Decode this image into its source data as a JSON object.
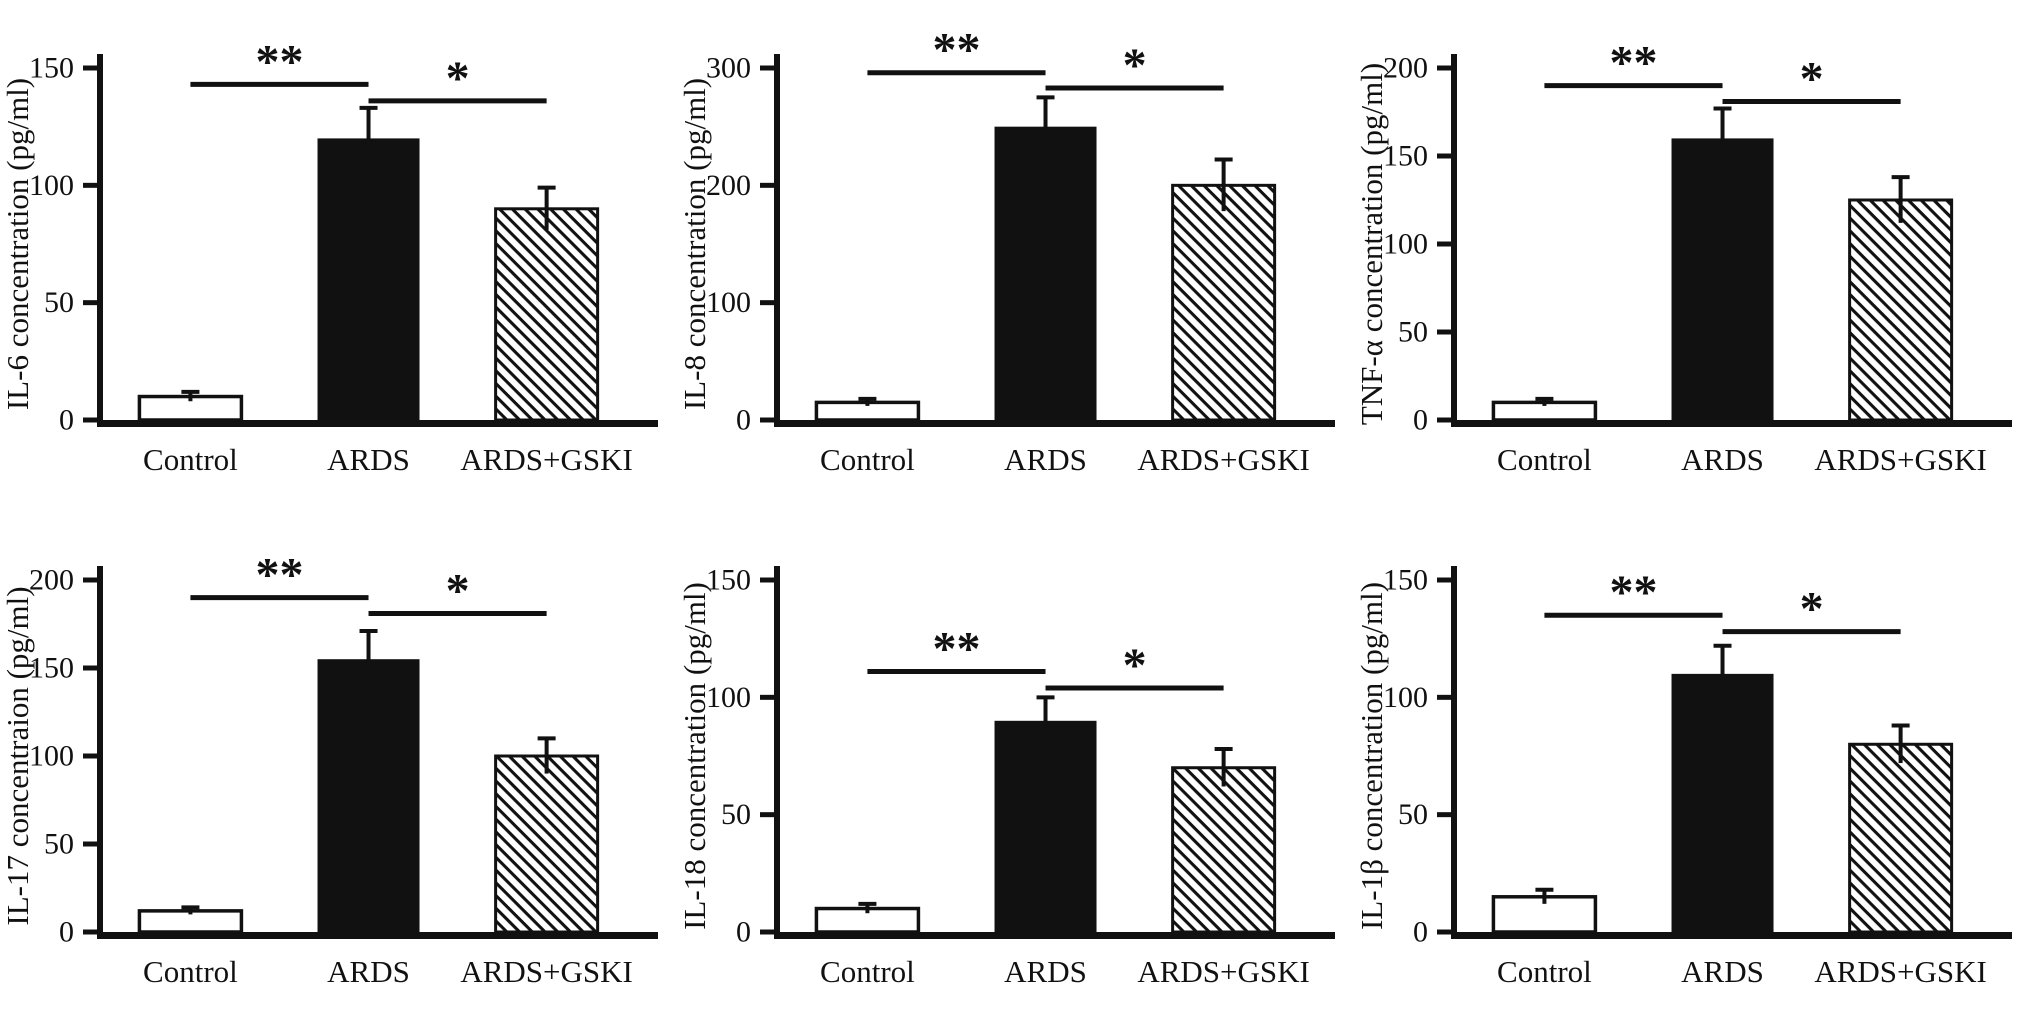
{
  "figure": {
    "background_color": "#ffffff",
    "ink_color": "#111111",
    "categories": [
      "Control",
      "ARDS",
      "ARDS+GSKI"
    ],
    "bar_styles": [
      "open",
      "solid",
      "hatched"
    ],
    "layout": {
      "rows": 2,
      "columns": 3
    }
  },
  "chart_data": [
    {
      "type": "bar",
      "panel": "IL-6",
      "ylabel": "IL-6 concentration (pg/ml)",
      "xlabel": "",
      "categories": [
        "Control",
        "ARDS",
        "ARDS+GSKI"
      ],
      "values": [
        10,
        120,
        90
      ],
      "errors": [
        2,
        13,
        9
      ],
      "ylim": [
        0,
        150
      ],
      "yticks": [
        0,
        50,
        100,
        150
      ],
      "bar_styles": [
        "open",
        "solid",
        "hatched"
      ],
      "grid": false,
      "legend": "none",
      "significance": [
        {
          "from": 0,
          "to": 1,
          "label": "**",
          "y": 143
        },
        {
          "from": 1,
          "to": 2,
          "label": "*",
          "y": 136
        }
      ]
    },
    {
      "type": "bar",
      "panel": "IL-8",
      "ylabel": "IL-8 concentration (pg/ml)",
      "xlabel": "",
      "categories": [
        "Control",
        "ARDS",
        "ARDS+GSKI"
      ],
      "values": [
        15,
        250,
        200
      ],
      "errors": [
        3,
        25,
        22
      ],
      "ylim": [
        0,
        300
      ],
      "yticks": [
        0,
        100,
        200,
        300
      ],
      "bar_styles": [
        "open",
        "solid",
        "hatched"
      ],
      "grid": false,
      "legend": "none",
      "significance": [
        {
          "from": 0,
          "to": 1,
          "label": "**",
          "y": 296
        },
        {
          "from": 1,
          "to": 2,
          "label": "*",
          "y": 283
        }
      ]
    },
    {
      "type": "bar",
      "panel": "TNF-α",
      "ylabel": "TNF-α concentration (pg/ml)",
      "xlabel": "",
      "categories": [
        "Control",
        "ARDS",
        "ARDS+GSKI"
      ],
      "values": [
        10,
        160,
        125
      ],
      "errors": [
        2,
        17,
        13
      ],
      "ylim": [
        0,
        200
      ],
      "yticks": [
        0,
        50,
        100,
        150,
        200
      ],
      "bar_styles": [
        "open",
        "solid",
        "hatched"
      ],
      "grid": false,
      "legend": "none",
      "significance": [
        {
          "from": 0,
          "to": 1,
          "label": "**",
          "y": 190
        },
        {
          "from": 1,
          "to": 2,
          "label": "*",
          "y": 181
        }
      ]
    },
    {
      "type": "bar",
      "panel": "IL-17",
      "ylabel": "IL-17 concentraion (pg/ml)",
      "xlabel": "",
      "categories": [
        "Control",
        "ARDS",
        "ARDS+GSKI"
      ],
      "values": [
        12,
        155,
        100
      ],
      "errors": [
        2,
        16,
        10
      ],
      "ylim": [
        0,
        200
      ],
      "yticks": [
        0,
        50,
        100,
        150,
        200
      ],
      "bar_styles": [
        "open",
        "solid",
        "hatched"
      ],
      "grid": false,
      "legend": "none",
      "significance": [
        {
          "from": 0,
          "to": 1,
          "label": "**",
          "y": 190
        },
        {
          "from": 1,
          "to": 2,
          "label": "*",
          "y": 181
        }
      ]
    },
    {
      "type": "bar",
      "panel": "IL-18",
      "ylabel": "IL-18 concentration (pg/ml)",
      "xlabel": "",
      "categories": [
        "Control",
        "ARDS",
        "ARDS+GSKI"
      ],
      "values": [
        10,
        90,
        70
      ],
      "errors": [
        2,
        10,
        8
      ],
      "ylim": [
        0,
        150
      ],
      "yticks": [
        0,
        50,
        100,
        150
      ],
      "bar_styles": [
        "open",
        "solid",
        "hatched"
      ],
      "grid": false,
      "legend": "none",
      "significance": [
        {
          "from": 0,
          "to": 1,
          "label": "**",
          "y": 111
        },
        {
          "from": 1,
          "to": 2,
          "label": "*",
          "y": 104
        }
      ]
    },
    {
      "type": "bar",
      "panel": "IL-1β",
      "ylabel": "IL-1β concentration (pg/ml)",
      "xlabel": "",
      "categories": [
        "Control",
        "ARDS",
        "ARDS+GSKI"
      ],
      "values": [
        15,
        110,
        80
      ],
      "errors": [
        3,
        12,
        8
      ],
      "ylim": [
        0,
        150
      ],
      "yticks": [
        0,
        50,
        100,
        150
      ],
      "bar_styles": [
        "open",
        "solid",
        "hatched"
      ],
      "grid": false,
      "legend": "none",
      "significance": [
        {
          "from": 0,
          "to": 1,
          "label": "**",
          "y": 135
        },
        {
          "from": 1,
          "to": 2,
          "label": "*",
          "y": 128
        }
      ]
    }
  ]
}
